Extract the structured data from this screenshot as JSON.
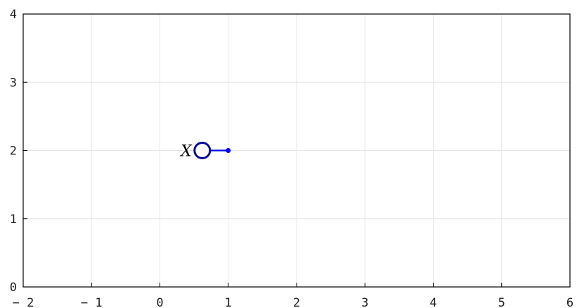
{
  "axes": {
    "x_range": [
      -2,
      6
    ],
    "y_range": [
      0,
      4
    ],
    "x_ticks": [
      {
        "value": -2,
        "label": "− 2"
      },
      {
        "value": -1,
        "label": "− 1"
      },
      {
        "value": 0,
        "label": "0"
      },
      {
        "value": 1,
        "label": "1"
      },
      {
        "value": 2,
        "label": "2"
      },
      {
        "value": 3,
        "label": "3"
      },
      {
        "value": 4,
        "label": "4"
      },
      {
        "value": 5,
        "label": "5"
      },
      {
        "value": 6,
        "label": "6"
      }
    ],
    "y_ticks": [
      {
        "value": 0,
        "label": "0"
      },
      {
        "value": 1,
        "label": "1"
      },
      {
        "value": 2,
        "label": "2"
      },
      {
        "value": 3,
        "label": "3"
      },
      {
        "value": 4,
        "label": "4"
      }
    ],
    "grid": true
  },
  "figure": {
    "point": {
      "label": "X",
      "x": 0.62,
      "y": 2.0
    },
    "handle": {
      "from_x": 0.62,
      "to_x": 1.0,
      "y": 2.0
    },
    "colors": {
      "point_stroke": "#0a0aa0",
      "handle": "#0000ff",
      "grid": "#e6e6e6",
      "frame": "#000000"
    }
  }
}
